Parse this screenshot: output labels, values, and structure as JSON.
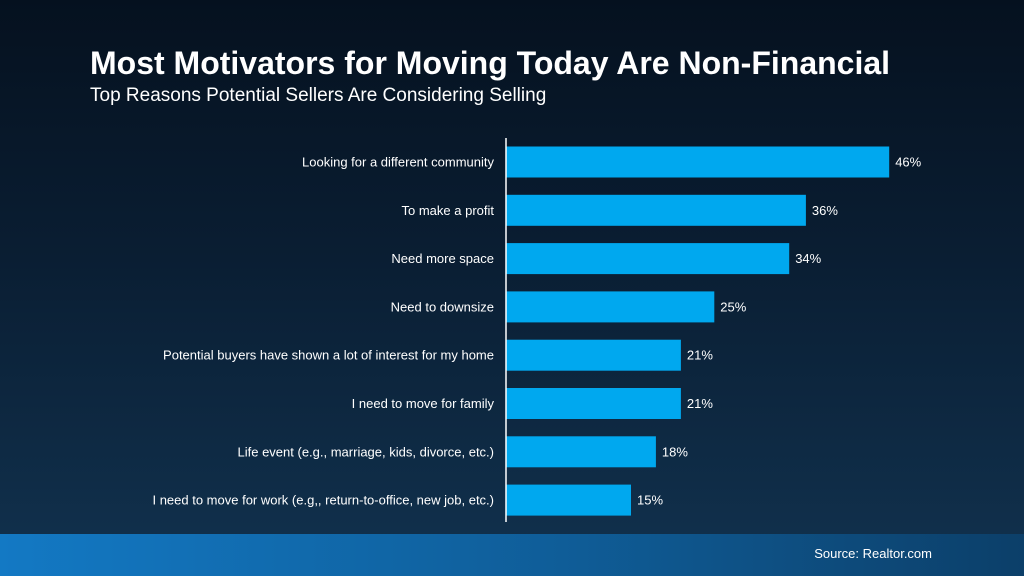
{
  "title": "Most Motivators for Moving Today Are Non-Financial",
  "subtitle": "Top Reasons Potential Sellers Are Considering Selling",
  "source": "Source: Realtor.com",
  "colors": {
    "bar": "#00a8ef",
    "text": "#ffffff",
    "axis": "#ffffff"
  },
  "chart_data": {
    "type": "bar",
    "orientation": "horizontal",
    "title": "Most Motivators for Moving Today Are Non-Financial",
    "subtitle": "Top Reasons Potential Sellers Are Considering Selling",
    "xlabel": "",
    "ylabel": "",
    "categories": [
      "Looking for a different community",
      "To make a profit",
      "Need more space",
      "Need to downsize",
      "Potential buyers have shown a lot of interest for my home",
      "I need to move for family",
      "Life event (e.g., marriage, kids, divorce, etc.)",
      "I need to move for work (e.g,, return-to-office, new job, etc.)"
    ],
    "values": [
      46,
      36,
      34,
      25,
      21,
      21,
      18,
      15
    ],
    "value_labels": [
      "46%",
      "36%",
      "34%",
      "25%",
      "21%",
      "21%",
      "18%",
      "15%"
    ],
    "xlim": [
      0,
      50
    ],
    "grid": false,
    "legend": "none"
  }
}
